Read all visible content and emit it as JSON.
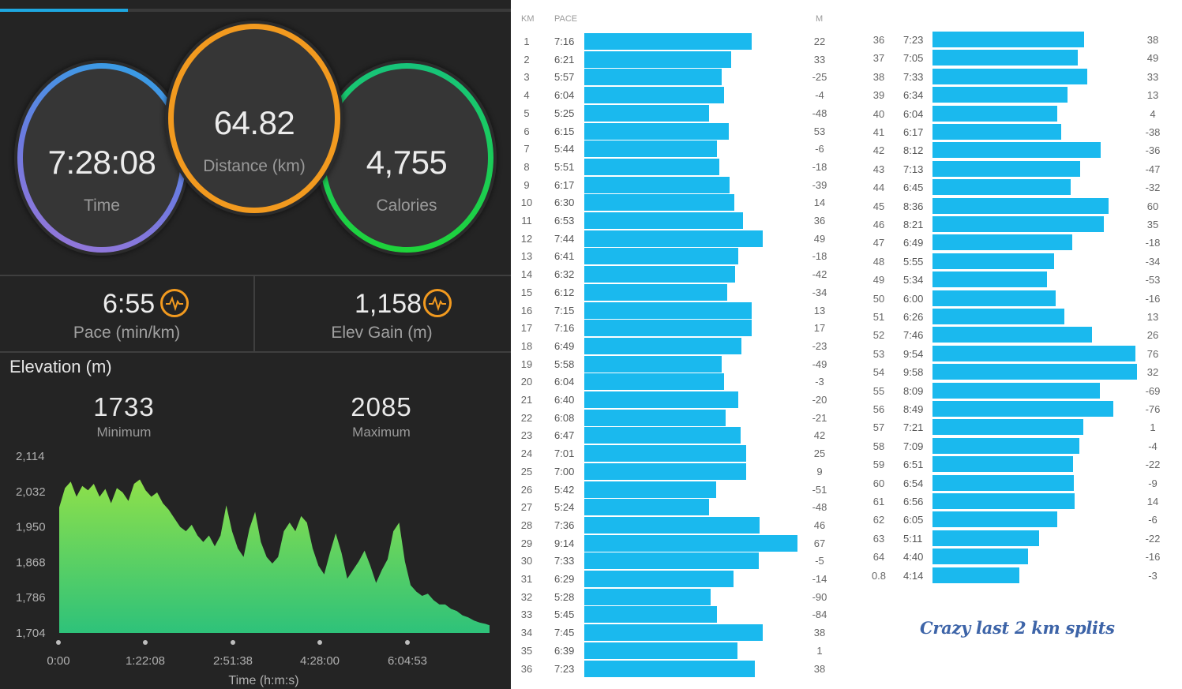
{
  "progress": {
    "fraction": 0.25
  },
  "summary": {
    "time": {
      "value": "7:28:08",
      "label": "Time"
    },
    "distance": {
      "value": "64.82",
      "label": "Distance (km)"
    },
    "calories": {
      "value": "4,755",
      "label": "Calories"
    }
  },
  "stats": {
    "pace": {
      "value": "6:55",
      "label": "Pace (min/km)",
      "icon": "activity-pulse-icon"
    },
    "elev_gain": {
      "value": "1,158",
      "label": "Elev Gain (m)",
      "icon": "activity-pulse-icon"
    }
  },
  "elevation": {
    "title": "Elevation (m)",
    "minimum": {
      "value": "1733",
      "label": "Minimum"
    },
    "maximum": {
      "value": "2085",
      "label": "Maximum"
    }
  },
  "chart_data": {
    "type": "area",
    "xlabel": "Time (h:m:s)",
    "x_tick_labels": [
      "0:00",
      "1:22:08",
      "2:51:38",
      "4:28:00",
      "6:04:53"
    ],
    "y_tick_labels": [
      "2,114",
      "2,032",
      "1,950",
      "1,868",
      "1,786",
      "1,704"
    ],
    "ylim": [
      1704,
      2114
    ],
    "x_hours": [
      0.0,
      0.1,
      0.2,
      0.3,
      0.4,
      0.5,
      0.6,
      0.7,
      0.8,
      0.9,
      1.0,
      1.1,
      1.2,
      1.3,
      1.4,
      1.5,
      1.6,
      1.7,
      1.8,
      1.9,
      2.0,
      2.1,
      2.2,
      2.3,
      2.4,
      2.5,
      2.6,
      2.7,
      2.8,
      2.9,
      3.0,
      3.1,
      3.2,
      3.3,
      3.4,
      3.5,
      3.6,
      3.7,
      3.8,
      3.9,
      4.0,
      4.1,
      4.2,
      4.3,
      4.4,
      4.5,
      4.6,
      4.7,
      4.8,
      4.9,
      5.0,
      5.1,
      5.2,
      5.3,
      5.4,
      5.5,
      5.6,
      5.7,
      5.8,
      5.9,
      6.0,
      6.1,
      6.2,
      6.3,
      6.4,
      6.5,
      6.6,
      6.7,
      6.8,
      6.9,
      7.0,
      7.1,
      7.2,
      7.3,
      7.4,
      7.47
    ],
    "elevation_m": [
      1995,
      2040,
      2055,
      2020,
      2045,
      2035,
      2050,
      2020,
      2038,
      2005,
      2040,
      2030,
      2010,
      2050,
      2060,
      2035,
      2020,
      2030,
      2005,
      1990,
      1970,
      1950,
      1940,
      1955,
      1930,
      1915,
      1930,
      1905,
      1930,
      2000,
      1940,
      1900,
      1880,
      1945,
      1985,
      1915,
      1880,
      1865,
      1880,
      1940,
      1960,
      1940,
      1975,
      1960,
      1900,
      1860,
      1840,
      1890,
      1935,
      1890,
      1830,
      1850,
      1870,
      1895,
      1860,
      1820,
      1850,
      1875,
      1940,
      1960,
      1870,
      1815,
      1800,
      1790,
      1795,
      1780,
      1770,
      1770,
      1760,
      1755,
      1745,
      1740,
      1733,
      1728,
      1725,
      1722
    ]
  },
  "splits_header": {
    "km": "KM",
    "pace": "PACE",
    "m": "M"
  },
  "splits_left": [
    {
      "km": "1",
      "pace": "7:16",
      "m": "22"
    },
    {
      "km": "2",
      "pace": "6:21",
      "m": "33"
    },
    {
      "km": "3",
      "pace": "5:57",
      "m": "-25"
    },
    {
      "km": "4",
      "pace": "6:04",
      "m": "-4"
    },
    {
      "km": "5",
      "pace": "5:25",
      "m": "-48"
    },
    {
      "km": "6",
      "pace": "6:15",
      "m": "53"
    },
    {
      "km": "7",
      "pace": "5:44",
      "m": "-6"
    },
    {
      "km": "8",
      "pace": "5:51",
      "m": "-18"
    },
    {
      "km": "9",
      "pace": "6:17",
      "m": "-39"
    },
    {
      "km": "10",
      "pace": "6:30",
      "m": "14"
    },
    {
      "km": "11",
      "pace": "6:53",
      "m": "36"
    },
    {
      "km": "12",
      "pace": "7:44",
      "m": "49"
    },
    {
      "km": "13",
      "pace": "6:41",
      "m": "-18"
    },
    {
      "km": "14",
      "pace": "6:32",
      "m": "-42"
    },
    {
      "km": "15",
      "pace": "6:12",
      "m": "-34"
    },
    {
      "km": "16",
      "pace": "7:15",
      "m": "13"
    },
    {
      "km": "17",
      "pace": "7:16",
      "m": "17"
    },
    {
      "km": "18",
      "pace": "6:49",
      "m": "-23"
    },
    {
      "km": "19",
      "pace": "5:58",
      "m": "-49"
    },
    {
      "km": "20",
      "pace": "6:04",
      "m": "-3"
    },
    {
      "km": "21",
      "pace": "6:40",
      "m": "-20"
    },
    {
      "km": "22",
      "pace": "6:08",
      "m": "-21"
    },
    {
      "km": "23",
      "pace": "6:47",
      "m": "42"
    },
    {
      "km": "24",
      "pace": "7:01",
      "m": "25"
    },
    {
      "km": "25",
      "pace": "7:00",
      "m": "9"
    },
    {
      "km": "26",
      "pace": "5:42",
      "m": "-51"
    },
    {
      "km": "27",
      "pace": "5:24",
      "m": "-48"
    },
    {
      "km": "28",
      "pace": "7:36",
      "m": "46"
    },
    {
      "km": "29",
      "pace": "9:14",
      "m": "67"
    },
    {
      "km": "30",
      "pace": "7:33",
      "m": "-5"
    },
    {
      "km": "31",
      "pace": "6:29",
      "m": "-14"
    },
    {
      "km": "32",
      "pace": "5:28",
      "m": "-90"
    },
    {
      "km": "33",
      "pace": "5:45",
      "m": "-84"
    },
    {
      "km": "34",
      "pace": "7:45",
      "m": "38"
    },
    {
      "km": "35",
      "pace": "6:39",
      "m": "1"
    },
    {
      "km": "36",
      "pace": "7:23",
      "m": "38"
    }
  ],
  "splits_right": [
    {
      "km": "36",
      "pace": "7:23",
      "m": "38"
    },
    {
      "km": "37",
      "pace": "7:05",
      "m": "49"
    },
    {
      "km": "38",
      "pace": "7:33",
      "m": "33"
    },
    {
      "km": "39",
      "pace": "6:34",
      "m": "13"
    },
    {
      "km": "40",
      "pace": "6:04",
      "m": "4"
    },
    {
      "km": "41",
      "pace": "6:17",
      "m": "-38"
    },
    {
      "km": "42",
      "pace": "8:12",
      "m": "-36"
    },
    {
      "km": "43",
      "pace": "7:13",
      "m": "-47"
    },
    {
      "km": "44",
      "pace": "6:45",
      "m": "-32"
    },
    {
      "km": "45",
      "pace": "8:36",
      "m": "60"
    },
    {
      "km": "46",
      "pace": "8:21",
      "m": "35"
    },
    {
      "km": "47",
      "pace": "6:49",
      "m": "-18"
    },
    {
      "km": "48",
      "pace": "5:55",
      "m": "-34"
    },
    {
      "km": "49",
      "pace": "5:34",
      "m": "-53"
    },
    {
      "km": "50",
      "pace": "6:00",
      "m": "-16"
    },
    {
      "km": "51",
      "pace": "6:26",
      "m": "13"
    },
    {
      "km": "52",
      "pace": "7:46",
      "m": "26"
    },
    {
      "km": "53",
      "pace": "9:54",
      "m": "76"
    },
    {
      "km": "54",
      "pace": "9:58",
      "m": "32"
    },
    {
      "km": "55",
      "pace": "8:09",
      "m": "-69"
    },
    {
      "km": "56",
      "pace": "8:49",
      "m": "-76"
    },
    {
      "km": "57",
      "pace": "7:21",
      "m": "1"
    },
    {
      "km": "58",
      "pace": "7:09",
      "m": "-4"
    },
    {
      "km": "59",
      "pace": "6:51",
      "m": "-22"
    },
    {
      "km": "60",
      "pace": "6:54",
      "m": "-9"
    },
    {
      "km": "61",
      "pace": "6:56",
      "m": "14"
    },
    {
      "km": "62",
      "pace": "6:05",
      "m": "-6"
    },
    {
      "km": "63",
      "pace": "5:11",
      "m": "-22"
    },
    {
      "km": "64",
      "pace": "4:40",
      "m": "-16"
    },
    {
      "km": "0.8",
      "pace": "4:14",
      "m": "-3"
    }
  ],
  "caption": "Crazy last 2 km splits",
  "colors": {
    "bar": "#1ab9ee",
    "time_ring": "#2ea3e6",
    "distance_ring": "#f29a1f",
    "calories_ring": "#1ed33a",
    "elevation_fill": "#7ed957"
  }
}
